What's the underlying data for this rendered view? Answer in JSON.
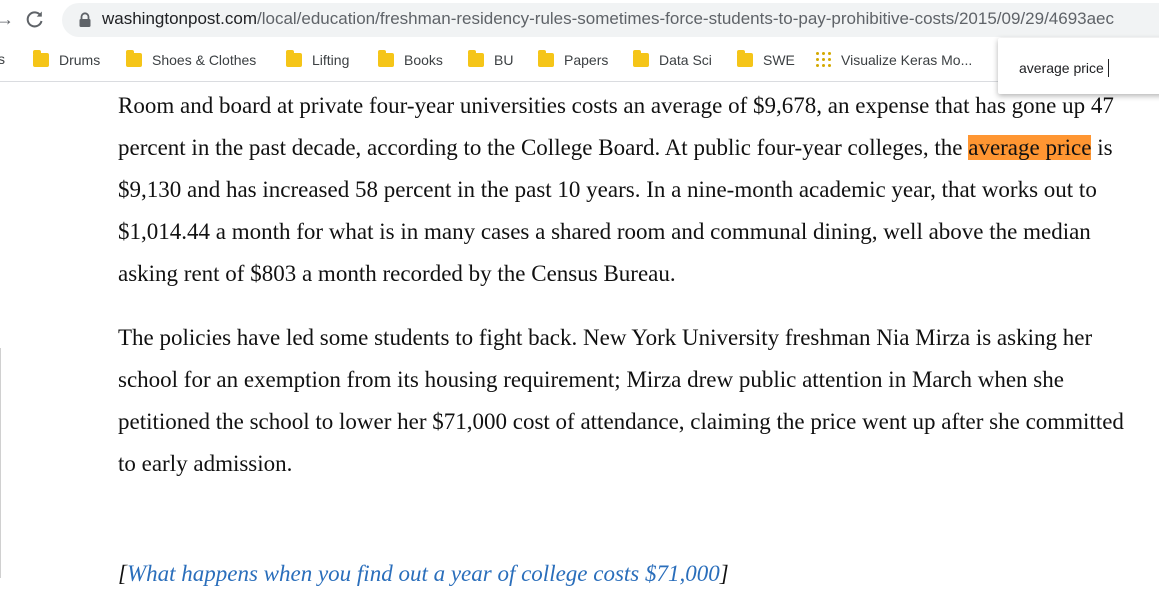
{
  "browser": {
    "url_host": "washingtonpost.com",
    "url_path": "/local/education/freshman-residency-rules-sometimes-force-students-to-pay-prohibitive-costs/2015/09/29/4693aec",
    "bookmarks_edge_text": "s",
    "bookmarks": [
      {
        "label": "Drums",
        "icon": "folder-icon"
      },
      {
        "label": "Shoes & Clothes",
        "icon": "folder-icon"
      },
      {
        "label": "Lifting",
        "icon": "folder-icon"
      },
      {
        "label": "Books",
        "icon": "folder-icon"
      },
      {
        "label": "BU",
        "icon": "folder-icon"
      },
      {
        "label": "Papers",
        "icon": "folder-icon"
      },
      {
        "label": "Data Sci",
        "icon": "folder-icon"
      },
      {
        "label": "SWE",
        "icon": "folder-icon"
      },
      {
        "label": "Visualize Keras Mo...",
        "icon": "dots-grid-icon"
      }
    ],
    "find": {
      "query": "average price"
    },
    "colors": {
      "highlight": "#ff9632",
      "folder": "#f5c518",
      "link": "#2a6ebb"
    }
  },
  "article": {
    "p1": {
      "before": "Room and board at private four-year universities costs an average of $9,678, an expense that has gone up 47 percent in the past decade, according to the College Board. At public four-year colleges, the ",
      "match": "average price",
      "after": " is $9,130 and has increased 58 percent in the past 10 years. In a nine-month academic year, that works out to $1,014.44 a month for what is in many cases a shared room and communal dining, well above the median asking rent of $803 a month recorded by the Census Bureau."
    },
    "p2": "The policies have led some students to fight back. New York University freshman Nia Mirza is asking her school for an exemption from its housing requirement; Mirza drew public attention in March when she petitioned the school to lower her $71,000 cost of attendance, claiming the price went up after she committed to early admission.",
    "related": {
      "open": "[",
      "text": "What happens when you find out a year of college costs $71,000",
      "close": "]"
    }
  }
}
